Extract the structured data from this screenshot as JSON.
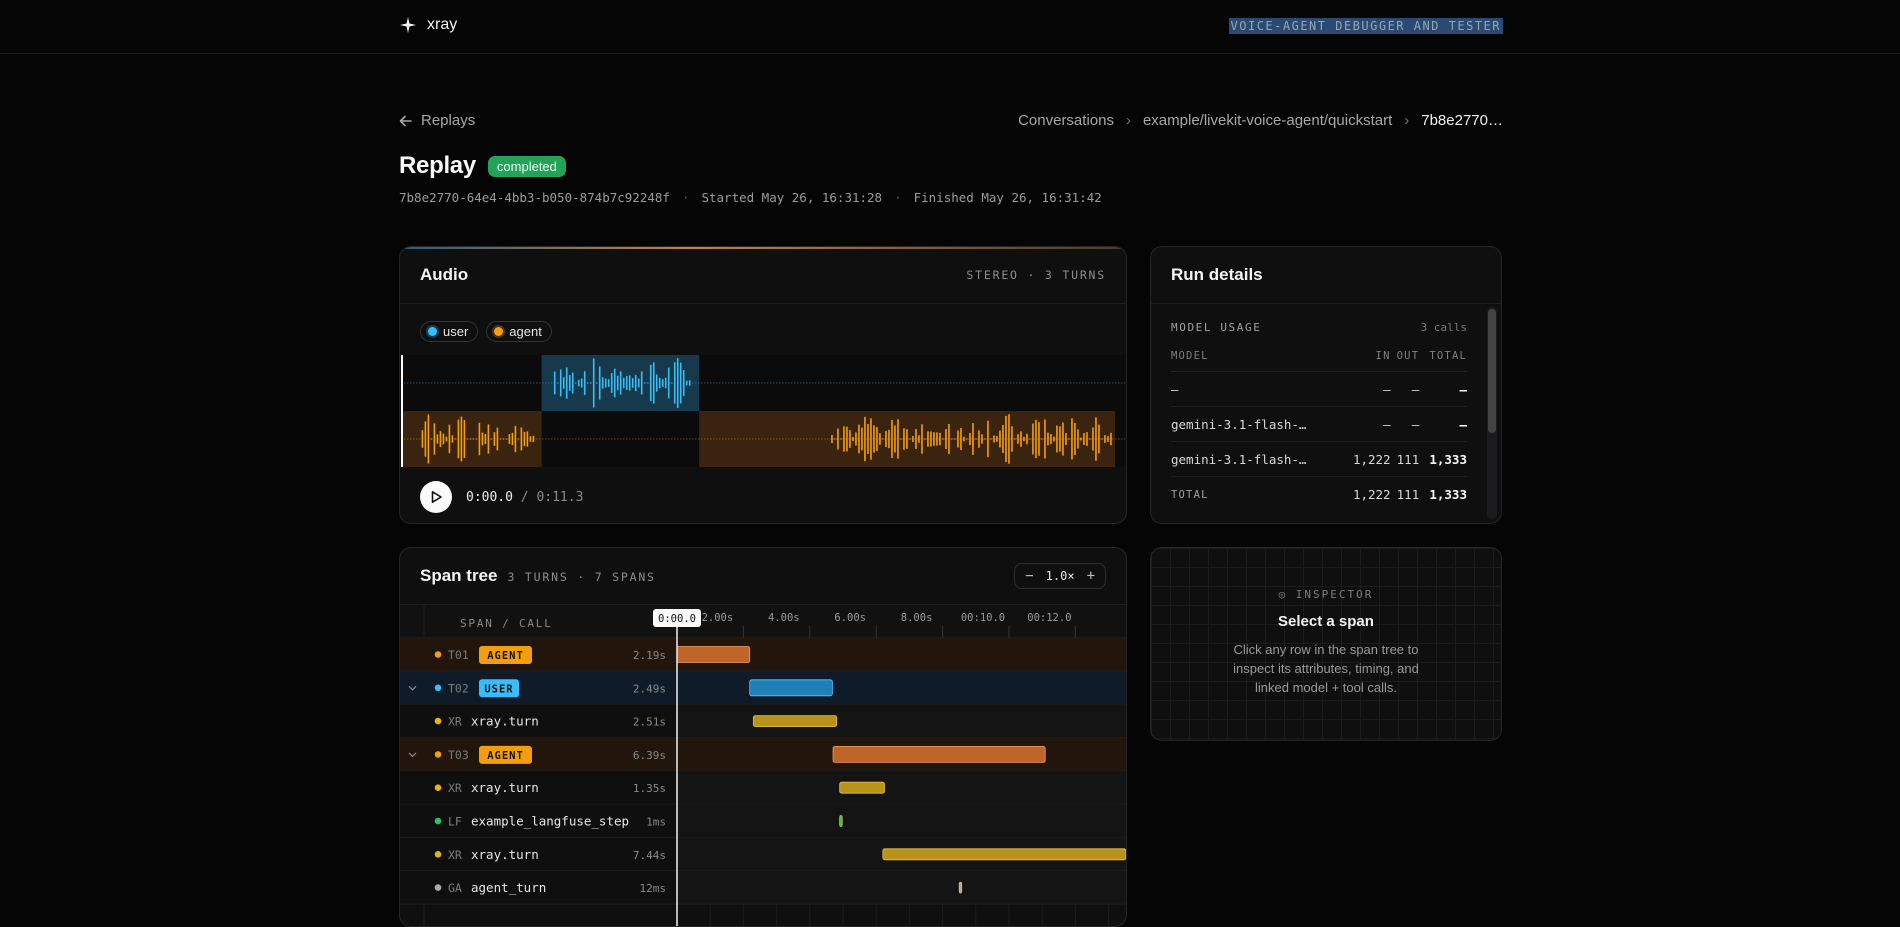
{
  "app": {
    "name": "xray",
    "tagline": "VOICE-AGENT DEBUGGER AND TESTER"
  },
  "nav": {
    "back_label": "Replays",
    "breadcrumbs": [
      "Conversations",
      "example/livekit-voice-agent/quickstart",
      "7b8e2770…"
    ]
  },
  "replay": {
    "title": "Replay",
    "status": "completed",
    "id": "7b8e2770-64e4-4bb3-b050-874b7c92248f",
    "started": "Started May 26, 16:31:28",
    "finished": "Finished May 26, 16:31:42"
  },
  "audio": {
    "title": "Audio",
    "subtitle": "STEREO · 3 TURNS",
    "legend": [
      {
        "label": "user",
        "color": "#38bdf8"
      },
      {
        "label": "agent",
        "color": "#f59e0b"
      }
    ],
    "current_time": "0:00.0",
    "total_time": "/ 0:11.3",
    "duration_s": 11.3,
    "user_segments": [
      [
        2.2,
        4.7
      ]
    ],
    "agent_segments": [
      [
        0.0,
        2.2
      ],
      [
        4.7,
        11.3
      ]
    ]
  },
  "run_details": {
    "title": "Run details",
    "model_usage_label": "MODEL USAGE",
    "calls": "3 calls",
    "columns": [
      "MODEL",
      "IN",
      "OUT",
      "TOTAL"
    ],
    "rows": [
      {
        "model": "–",
        "in": "–",
        "out": "–",
        "total": "–"
      },
      {
        "model": "gemini-3.1-flash-…",
        "in": "–",
        "out": "–",
        "total": "–"
      },
      {
        "model": "gemini-3.1-flash-…",
        "in": "1,222",
        "out": "111",
        "total": "1,333"
      }
    ],
    "total_row": {
      "label": "TOTAL",
      "in": "1,222",
      "out": "111",
      "total": "1,333"
    }
  },
  "span_tree": {
    "title": "Span tree",
    "subtitle": "3 TURNS · 7 SPANS",
    "zoom": "1.0×",
    "column_label": "SPAN / CALL",
    "playhead_label": "0:00.0",
    "ticks": [
      "2.00s",
      "4.00s",
      "6.00s",
      "8.00s",
      "00:10.0",
      "00:12.0"
    ],
    "tick_values": [
      2,
      4,
      6,
      8,
      10,
      12
    ],
    "rows": [
      {
        "kind": "turn",
        "code": "T01",
        "tag": "AGENT",
        "duration": "2.19s",
        "start": 0.0,
        "dur": 2.19,
        "color": "#f59e0b",
        "expandable": false
      },
      {
        "kind": "turn",
        "code": "T02",
        "tag": "USER",
        "duration": "2.49s",
        "start": 2.19,
        "dur": 2.49,
        "color": "#38bdf8",
        "expandable": true
      },
      {
        "kind": "span",
        "code": "XR",
        "name": "xray.turn",
        "duration": "2.51s",
        "start": 2.3,
        "dur": 2.51,
        "color": "#eab308"
      },
      {
        "kind": "turn",
        "code": "T03",
        "tag": "AGENT",
        "duration": "6.39s",
        "start": 4.7,
        "dur": 6.39,
        "color": "#f59e0b",
        "expandable": true
      },
      {
        "kind": "span",
        "code": "XR",
        "name": "xray.turn",
        "duration": "1.35s",
        "start": 4.9,
        "dur": 1.35,
        "color": "#eab308"
      },
      {
        "kind": "span",
        "code": "LF",
        "name": "example_langfuse_step",
        "duration": "1ms",
        "start": 4.9,
        "dur": 0.06,
        "color": "#22c55e"
      },
      {
        "kind": "span",
        "code": "XR",
        "name": "xray.turn",
        "duration": "7.44s",
        "start": 6.2,
        "dur": 7.44,
        "color": "#eab308"
      },
      {
        "kind": "span",
        "code": "GA",
        "name": "agent_turn",
        "duration": "12ms",
        "start": 8.5,
        "dur": 0.05,
        "color": "#aaaaaa"
      }
    ]
  },
  "inspector": {
    "label": "◎ INSPECTOR",
    "title": "Select a span",
    "text": "Click any row in the span tree to inspect its attributes, timing, and linked model + tool calls."
  }
}
